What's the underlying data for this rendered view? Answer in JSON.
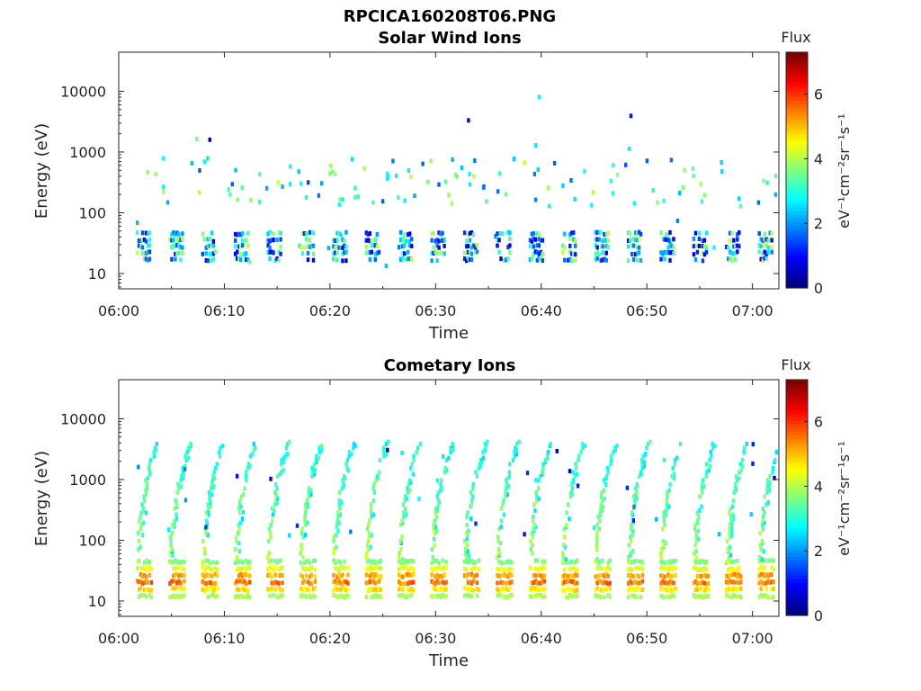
{
  "figure_title": "RPCICA160208T06.PNG",
  "colors": {
    "colormap": [
      "#00007f",
      "#0000ff",
      "#007fff",
      "#00ffff",
      "#7fff7f",
      "#ffff00",
      "#ff7f00",
      "#ff0000",
      "#7f0000"
    ]
  },
  "chart_data": [
    {
      "type": "heatmap",
      "title": "Solar Wind Ions",
      "xlabel": "Time",
      "ylabel": "Energy (eV)",
      "x_ticks": [
        "06:00",
        "06:10",
        "06:20",
        "06:30",
        "06:40",
        "06:50",
        "07:00"
      ],
      "x_range_minutes": [
        0,
        62.5
      ],
      "y_scale": "log",
      "y_ticks": [
        "10",
        "100",
        "1000",
        "10000"
      ],
      "y_range": [
        5.6,
        44000
      ],
      "colorbar": {
        "label": "Flux",
        "unit": "eV⁻¹cm⁻²sr⁻¹s⁻¹",
        "ticks": [
          "0",
          "2",
          "4",
          "6"
        ],
        "range": [
          0,
          7.3
        ]
      },
      "grid": false,
      "sweep_period_minutes": 3.1,
      "dominant_energy_band_eV": [
        16,
        45
      ],
      "secondary_energy_band_eV": [
        150,
        600
      ],
      "flux_range_typical": [
        0.5,
        4.2
      ]
    },
    {
      "type": "heatmap",
      "title": "Cometary Ions",
      "xlabel": "Time",
      "ylabel": "Energy (eV)",
      "x_ticks": [
        "06:00",
        "06:10",
        "06:20",
        "06:30",
        "06:40",
        "06:50",
        "07:00"
      ],
      "x_range_minutes": [
        0,
        62.5
      ],
      "y_scale": "log",
      "y_ticks": [
        "10",
        "100",
        "1000",
        "10000"
      ],
      "y_range": [
        5.6,
        44000
      ],
      "colorbar": {
        "label": "Flux",
        "unit": "eV⁻¹cm⁻²sr⁻¹s⁻¹",
        "ticks": [
          "0",
          "2",
          "4",
          "6"
        ],
        "range": [
          0,
          7.3
        ]
      },
      "grid": false,
      "sweep_period_minutes": 3.1,
      "dominant_energy_band_eV": [
        12,
        45
      ],
      "peak_flux": 6.2,
      "dispersion_up_to_eV": 5000,
      "flux_range_typical": [
        2.5,
        6.2
      ]
    }
  ]
}
